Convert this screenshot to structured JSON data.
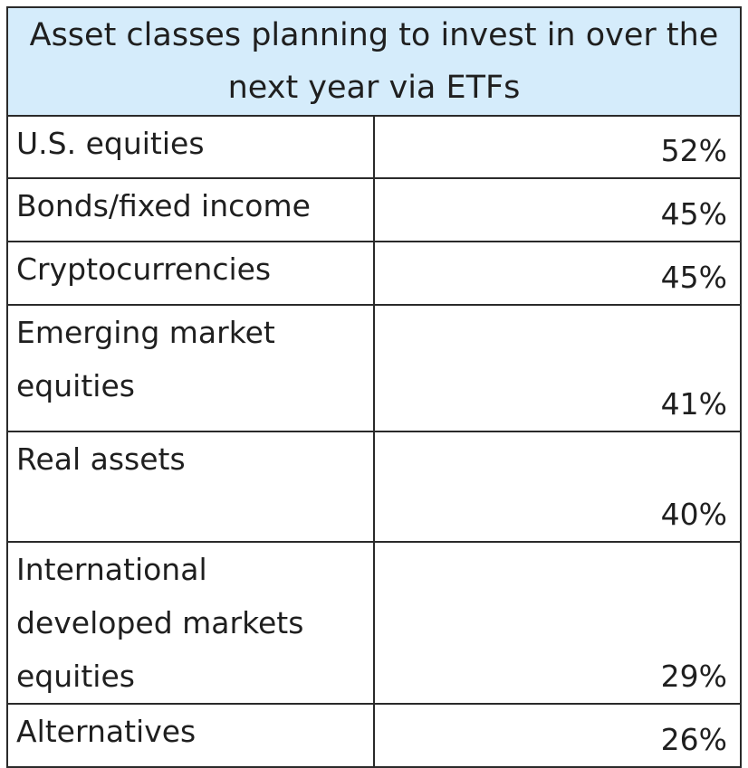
{
  "chart_data": {
    "type": "table",
    "title": "Asset classes planning to invest in over the next year via ETFs",
    "header_color": "#d5ecfb",
    "rows": [
      {
        "label": "U.S. equities",
        "value": "52%"
      },
      {
        "label": "Bonds/fixed income",
        "value": "45%"
      },
      {
        "label": "Cryptocurrencies",
        "value": "45%"
      },
      {
        "label": "Emerging market equities",
        "value": "41%"
      },
      {
        "label": "Real assets",
        "value": "40%"
      },
      {
        "label": "International developed markets equities",
        "value": "29%"
      },
      {
        "label": "Alternatives",
        "value": "26%"
      }
    ],
    "values": [
      52,
      45,
      45,
      41,
      40,
      29,
      26
    ]
  }
}
